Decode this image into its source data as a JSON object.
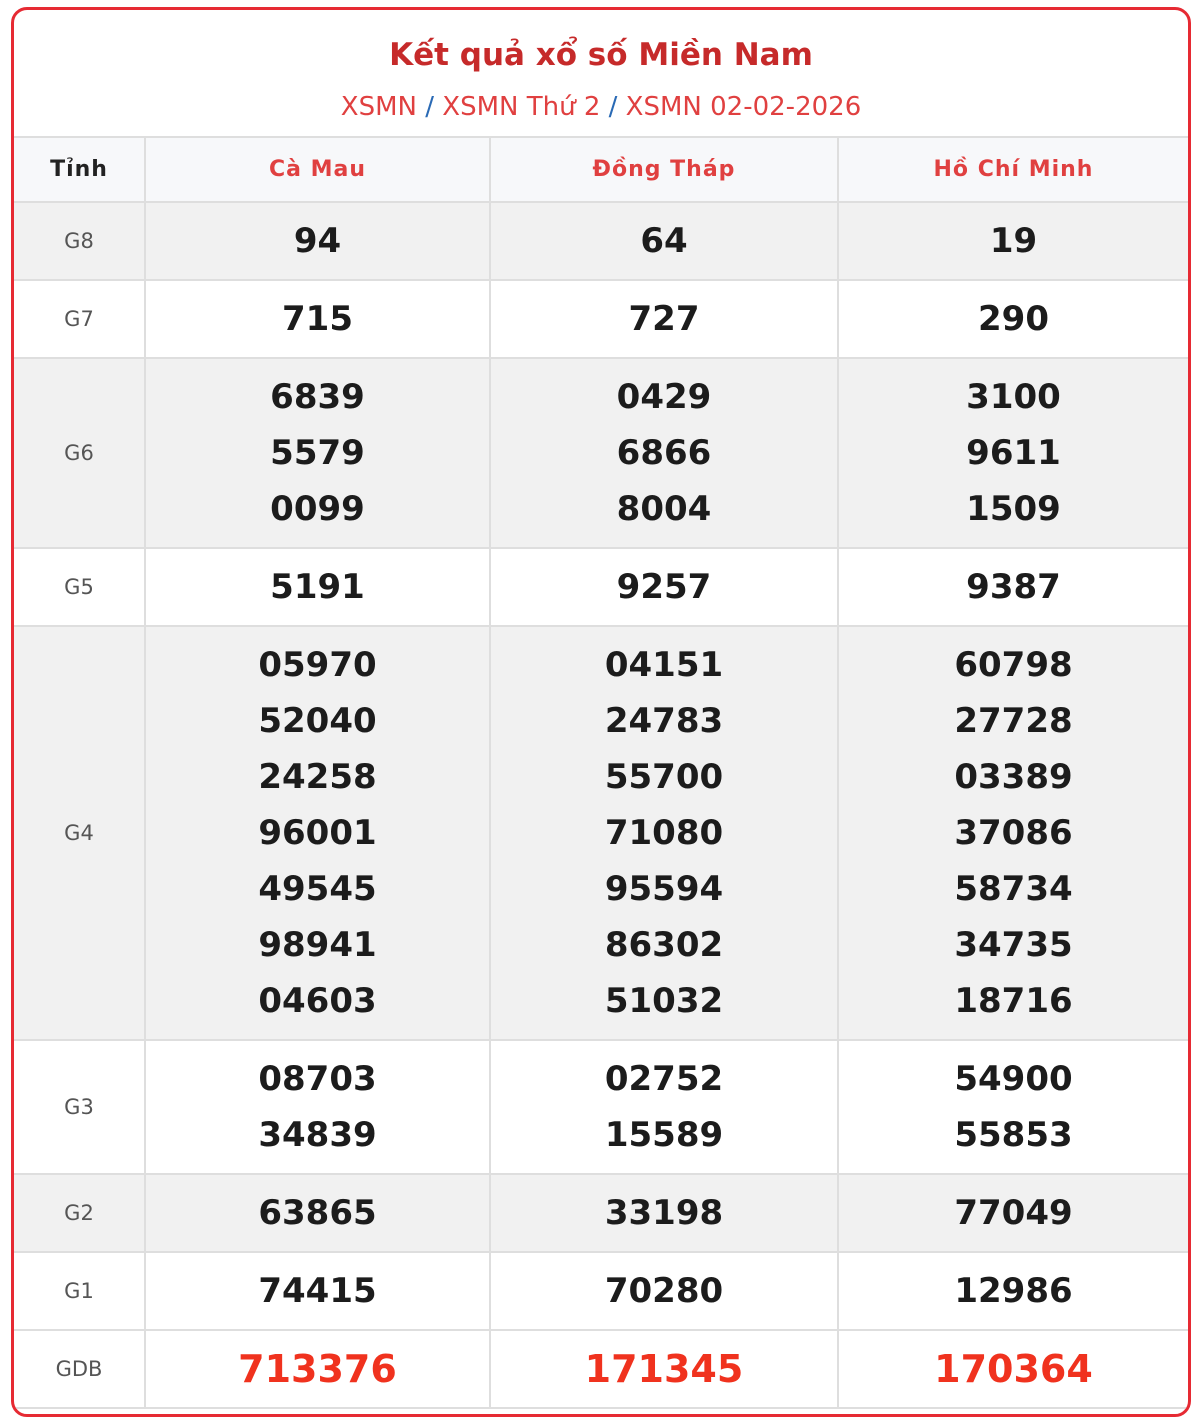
{
  "title": "Kết quả xổ số Miền Nam",
  "breadcrumb": [
    "XSMN",
    "XSMN Thứ 2",
    "XSMN 02-02-2026"
  ],
  "breadcrumb_separator": "/",
  "colors": {
    "border": "#e62a33",
    "title": "#c62a2a",
    "special_prize": "#f0321e"
  },
  "table": {
    "header": [
      "Tỉnh",
      "Cà Mau",
      "Đồng Tháp",
      "Hồ Chí Minh"
    ],
    "rows": [
      {
        "label": "G8",
        "values": [
          [
            "94"
          ],
          [
            "64"
          ],
          [
            "19"
          ]
        ]
      },
      {
        "label": "G7",
        "values": [
          [
            "715"
          ],
          [
            "727"
          ],
          [
            "290"
          ]
        ]
      },
      {
        "label": "G6",
        "values": [
          [
            "6839",
            "5579",
            "0099"
          ],
          [
            "0429",
            "6866",
            "8004"
          ],
          [
            "3100",
            "9611",
            "1509"
          ]
        ]
      },
      {
        "label": "G5",
        "values": [
          [
            "5191"
          ],
          [
            "9257"
          ],
          [
            "9387"
          ]
        ]
      },
      {
        "label": "G4",
        "values": [
          [
            "05970",
            "52040",
            "24258",
            "96001",
            "49545",
            "98941",
            "04603"
          ],
          [
            "04151",
            "24783",
            "55700",
            "71080",
            "95594",
            "86302",
            "51032"
          ],
          [
            "60798",
            "27728",
            "03389",
            "37086",
            "58734",
            "34735",
            "18716"
          ]
        ]
      },
      {
        "label": "G3",
        "values": [
          [
            "08703",
            "34839"
          ],
          [
            "02752",
            "15589"
          ],
          [
            "54900",
            "55853"
          ]
        ]
      },
      {
        "label": "G2",
        "values": [
          [
            "63865"
          ],
          [
            "33198"
          ],
          [
            "77049"
          ]
        ]
      },
      {
        "label": "G1",
        "values": [
          [
            "74415"
          ],
          [
            "70280"
          ],
          [
            "12986"
          ]
        ]
      },
      {
        "label": "GDB",
        "values": [
          [
            "713376"
          ],
          [
            "171345"
          ],
          [
            "170364"
          ]
        ]
      }
    ]
  }
}
